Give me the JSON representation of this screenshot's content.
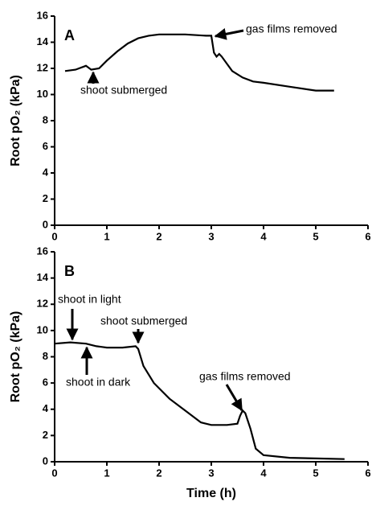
{
  "chart_data": [
    {
      "type": "line",
      "panel_label": "A",
      "ylabel": "Root pO₂ (kPa)",
      "color": "#000000",
      "x": [
        0.2,
        0.4,
        0.6,
        0.7,
        0.85,
        1.0,
        1.2,
        1.4,
        1.6,
        1.8,
        2.0,
        2.5,
        2.9,
        3.0,
        3.05,
        3.1,
        3.15,
        3.2,
        3.4,
        3.6,
        3.8,
        4.0,
        4.5,
        5.0,
        5.35
      ],
      "values": [
        11.8,
        11.9,
        12.2,
        11.9,
        12.0,
        12.6,
        13.3,
        13.9,
        14.3,
        14.5,
        14.6,
        14.6,
        14.5,
        14.5,
        13.2,
        12.9,
        13.1,
        12.9,
        11.8,
        11.3,
        11.0,
        10.9,
        10.6,
        10.3,
        10.3
      ],
      "xlim": [
        0,
        6
      ],
      "xticks": [
        0,
        1,
        2,
        3,
        4,
        5,
        6
      ],
      "ylim": [
        0,
        16
      ],
      "yticks": [
        0,
        2,
        4,
        6,
        8,
        10,
        12,
        14,
        16
      ],
      "annotations": [
        "shoot submerged",
        "gas films removed"
      ]
    },
    {
      "type": "line",
      "panel_label": "B",
      "ylabel": "Root pO₂ (kPa)",
      "xlabel": "Time (h)",
      "color": "#000000",
      "x": [
        0,
        0.3,
        0.6,
        0.8,
        1.0,
        1.3,
        1.55,
        1.6,
        1.7,
        1.9,
        2.2,
        2.5,
        2.8,
        3.0,
        3.3,
        3.5,
        3.55,
        3.6,
        3.65,
        3.75,
        3.85,
        4.0,
        4.5,
        5.0,
        5.55
      ],
      "values": [
        9.0,
        9.1,
        9.0,
        8.8,
        8.7,
        8.7,
        8.8,
        8.6,
        7.3,
        6.0,
        4.8,
        3.9,
        3.0,
        2.8,
        2.8,
        2.9,
        3.5,
        3.9,
        3.7,
        2.5,
        1.0,
        0.5,
        0.3,
        0.25,
        0.2
      ],
      "xlim": [
        0,
        6
      ],
      "xticks": [
        0,
        1,
        2,
        3,
        4,
        5,
        6
      ],
      "ylim": [
        0,
        16
      ],
      "yticks": [
        0,
        2,
        4,
        6,
        8,
        10,
        12,
        14,
        16
      ],
      "annotations": [
        "shoot in light",
        "shoot in dark",
        "shoot submerged",
        "gas films removed"
      ]
    }
  ]
}
